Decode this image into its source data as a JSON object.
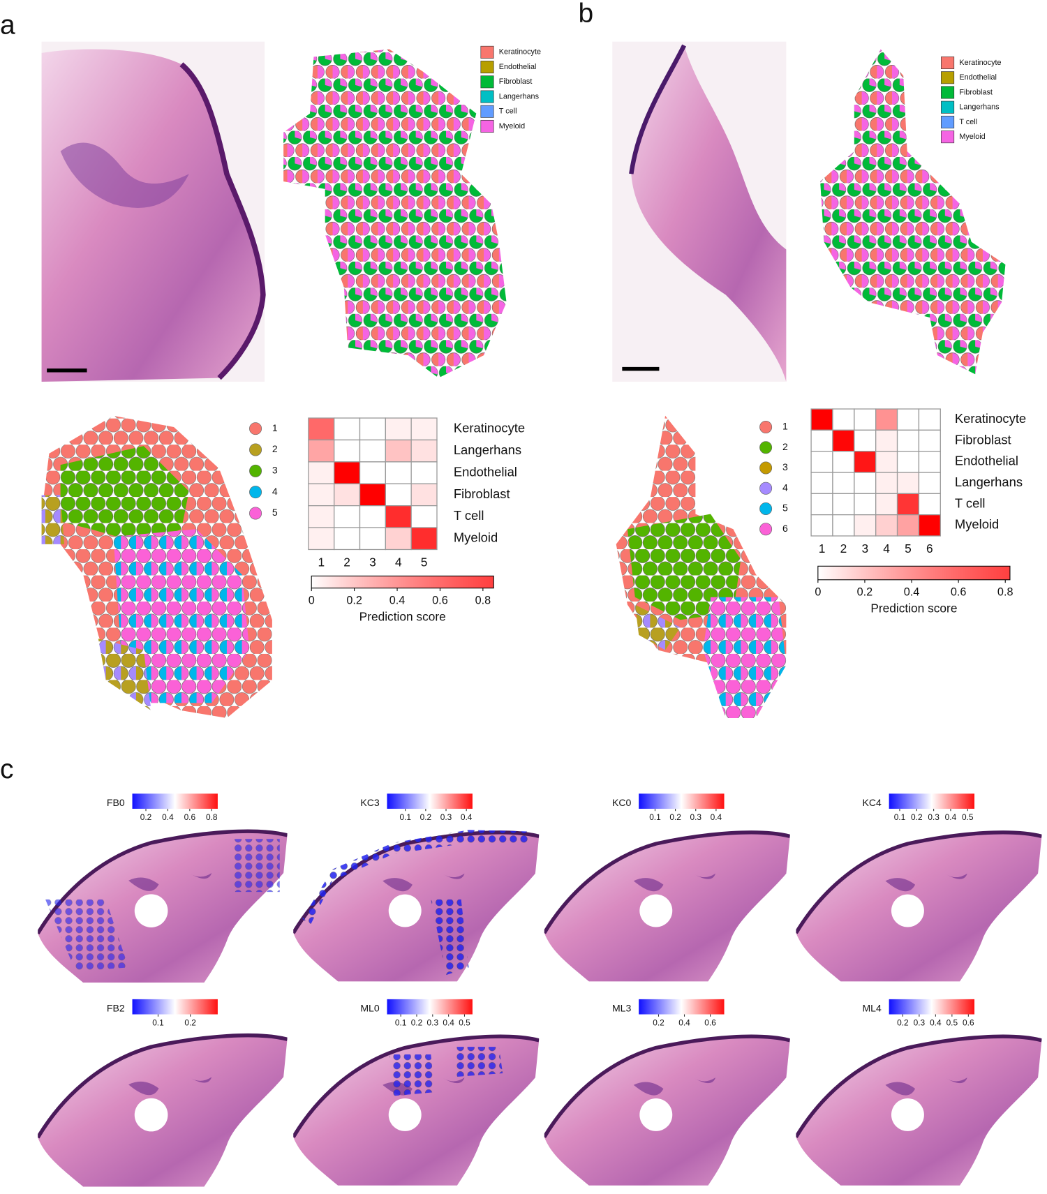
{
  "panel_a": {
    "label": "a",
    "legend": [
      {
        "name": "Keratinocyte",
        "color": "#f8766d"
      },
      {
        "name": "Endothelial",
        "color": "#b79f00"
      },
      {
        "name": "Fibroblast",
        "color": "#00ba38"
      },
      {
        "name": "Langerhans",
        "color": "#00bfc4"
      },
      {
        "name": "T cell",
        "color": "#619cff"
      },
      {
        "name": "Myeloid",
        "color": "#f564e3"
      }
    ],
    "clusters": [
      {
        "label": "1",
        "color": "#f8766d"
      },
      {
        "label": "2",
        "color": "#b8a020"
      },
      {
        "label": "3",
        "color": "#53b400"
      },
      {
        "label": "4",
        "color": "#00b6eb"
      },
      {
        "label": "5",
        "color": "#fb61d7"
      }
    ],
    "heatmap": {
      "type": "heatmap",
      "rows": [
        "Keratinocyte",
        "Langerhans",
        "Endothelial",
        "Fibroblast",
        "T cell",
        "Myeloid"
      ],
      "columns": [
        "1",
        "2",
        "3",
        "4",
        "5"
      ],
      "values": [
        [
          0.5,
          0,
          0,
          0.05,
          0.05
        ],
        [
          0.3,
          0,
          0,
          0.2,
          0.1
        ],
        [
          0.05,
          0.85,
          0,
          0,
          0
        ],
        [
          0.05,
          0.1,
          0.85,
          0,
          0.1
        ],
        [
          0.05,
          0,
          0,
          0.7,
          0
        ],
        [
          0.05,
          0,
          0,
          0.15,
          0.7
        ]
      ],
      "colorbar": {
        "label": "Prediction score",
        "lim": [
          0,
          0.85
        ],
        "ticks": [
          0,
          0.2,
          0.4,
          0.6,
          0.8
        ]
      }
    }
  },
  "panel_b": {
    "label": "b",
    "legend": [
      {
        "name": "Keratinocyte",
        "color": "#f8766d"
      },
      {
        "name": "Endothelial",
        "color": "#b79f00"
      },
      {
        "name": "Fibroblast",
        "color": "#00ba38"
      },
      {
        "name": "Langerhans",
        "color": "#00bfc4"
      },
      {
        "name": "T cell",
        "color": "#619cff"
      },
      {
        "name": "Myeloid",
        "color": "#f564e3"
      }
    ],
    "clusters": [
      {
        "label": "1",
        "color": "#f8766d"
      },
      {
        "label": "2",
        "color": "#53b400"
      },
      {
        "label": "3",
        "color": "#c49a00"
      },
      {
        "label": "4",
        "color": "#a58aff"
      },
      {
        "label": "5",
        "color": "#00b6eb"
      },
      {
        "label": "6",
        "color": "#fb61d7"
      }
    ],
    "heatmap": {
      "type": "heatmap",
      "rows": [
        "Keratinocyte",
        "Fibroblast",
        "Endothelial",
        "Langerhans",
        "T cell",
        "Myeloid"
      ],
      "columns": [
        "1",
        "2",
        "3",
        "4",
        "5",
        "6"
      ],
      "values": [
        [
          0.85,
          0,
          0,
          0.35,
          0,
          0
        ],
        [
          0,
          0.8,
          0,
          0.05,
          0,
          0
        ],
        [
          0,
          0,
          0.75,
          0.05,
          0,
          0
        ],
        [
          0,
          0,
          0,
          0.05,
          0.05,
          0
        ],
        [
          0,
          0,
          0,
          0.05,
          0.65,
          0
        ],
        [
          0,
          0,
          0.05,
          0.15,
          0.3,
          0.85
        ]
      ],
      "colorbar": {
        "label": "Prediction score",
        "lim": [
          0,
          0.82
        ],
        "ticks": [
          0,
          0.2,
          0.4,
          0.6,
          0.8
        ]
      }
    }
  },
  "panel_c": {
    "label": "c",
    "maps": [
      {
        "title": "FB0",
        "lim": [
          0.076,
          0.855
        ],
        "ticks": [
          0.2,
          0.4,
          0.6,
          0.8
        ]
      },
      {
        "title": "KC3",
        "lim": [
          0.01,
          0.43
        ],
        "ticks": [
          0.1,
          0.2,
          0.3,
          0.4
        ]
      },
      {
        "title": "KC0",
        "lim": [
          0.02,
          0.44
        ],
        "ticks": [
          0.1,
          0.2,
          0.3,
          0.4
        ]
      },
      {
        "title": "KC4",
        "lim": [
          0.037,
          0.54
        ],
        "ticks": [
          0.1,
          0.2,
          0.3,
          0.4,
          0.5
        ]
      },
      {
        "title": "FB2",
        "lim": [
          0.02,
          0.285
        ],
        "ticks": [
          0.1,
          0.2
        ]
      },
      {
        "title": "ML0",
        "lim": [
          0.014,
          0.55
        ],
        "ticks": [
          0.1,
          0.2,
          0.3,
          0.4,
          0.5
        ]
      },
      {
        "title": "ML3",
        "lim": [
          0.047,
          0.708
        ],
        "ticks": [
          0.2,
          0.4,
          0.6
        ]
      },
      {
        "title": "ML4",
        "lim": [
          0.116,
          0.637
        ],
        "ticks": [
          0.2,
          0.3,
          0.4,
          0.5,
          0.6
        ]
      }
    ]
  }
}
